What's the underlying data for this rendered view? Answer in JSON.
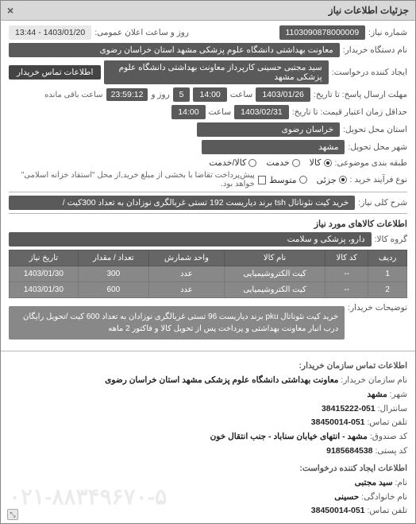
{
  "modal": {
    "title": "جزئیات اطلاعات نیاز",
    "close": "×"
  },
  "header": {
    "number_label": "شماره نیاز:",
    "number": "1103090878000009",
    "announce_label": "روز و ساعت اعلان عمومی:",
    "announce": "1403/01/20 - 13:44",
    "org_label": "نام دستگاه خریدار:",
    "org": "معاونت بهداشتی دانشگاه علوم پزشکی مشهد استان خراسان رضوی",
    "requester_label": "ایجاد کننده درخواست:",
    "requester": "سید مجتبی حسینی کارپرداز معاونت بهداشتی دانشگاه علوم پزشکی مشهد",
    "contact_btn": "اطلاعات تماس خریدار",
    "deadline_label": "مهلت ارسال پاسخ: تا تاریخ:",
    "deadline_date": "1403/01/26",
    "deadline_time_label": "ساعت",
    "deadline_time": "14:00",
    "days_label": "روز و",
    "days": "5",
    "timer": "23:59:12",
    "remaining": "ساعت باقی مانده",
    "validity_label": "حداقل زمان اعتبار قیمت: تا تاریخ:",
    "validity_date": "1403/02/31",
    "validity_time": "14:00",
    "province_label": "استان محل تحویل:",
    "province": "خراسان رضوی",
    "city_label": "شهر محل تحویل:",
    "city": "مشهد",
    "grouping_label": "طبقه بندی موضوعی:",
    "grouping_options": {
      "goods": "کالا",
      "service": "خدمت",
      "both": "کالا/خدمت"
    },
    "buytype_label": "نوع فرآیند خرید :",
    "buytype_options": {
      "partial": "جزئی",
      "medium": "متوسط"
    },
    "buytype_note": "پیش‌پرداخت تقاضا با بخشی از مبلغ خرید,از محل \"استفاد خزانه اسلامی\" خواهد بود.",
    "need_title_label": "شرح کلی نیاز:",
    "need_title": "خرید کیت نئوناتال tsh برند دیاریست 192 تستی غربالگری نوزادان به تعداد 300کیت /"
  },
  "goods": {
    "section_title": "اطلاعات کالاهای مورد نیاز",
    "group_label": "گروه کالا:",
    "group": "دارو، پزشکی و سلامت",
    "columns": {
      "row": "ردیف",
      "code": "کد کالا",
      "name": "نام کالا",
      "unit": "واحد شمارش",
      "qty": "تعداد / مقدار",
      "date": "تاریخ نیاز"
    },
    "rows": [
      {
        "row": "1",
        "code": "--",
        "name": "کیت الکتروشیمیایی",
        "unit": "عدد",
        "qty": "300",
        "date": "1403/01/30"
      },
      {
        "row": "2",
        "code": "--",
        "name": "کیت الکتروشیمیایی",
        "unit": "عدد",
        "qty": "600",
        "date": "1403/01/30"
      }
    ]
  },
  "desc": {
    "label": "توضیحات خریدار:",
    "text": "خرید کیت نئوناتال pku برند دیاریست 96 تستی غربالگری نوزادان به تعداد 600 کیت /تحویل رایگان درب انبار معاونت بهداشتی و پرداخت پس از تحویل کالا و فاکتور 2 ماهه"
  },
  "contact": {
    "section_title": "اطلاعات تماس سازمان خریدار:",
    "org_label": "نام سازمان خریدار:",
    "org": "معاونت بهداشتی دانشگاه علوم پزشکی مشهد استان خراسان رضوی",
    "city_label": "شهر:",
    "city": "مشهد",
    "central_label": "سانترال:",
    "central": "051-38415222",
    "fax_label": "تلفن تماس:",
    "fax": "051-38450014",
    "postal_label": "کد صندوق:",
    "postal": "مشهد - انتهای خیابان سناباد - جنب انتقال خون",
    "postcode_label": "کد پستی:",
    "postcode": "9185684538",
    "creator_section": "اطلاعات ایجاد کننده درخواست:",
    "name_label": "نام:",
    "name": "سید مجتبی",
    "family_label": "نام خانوادگی:",
    "family": "حسینی",
    "phone_label": "تلفن تماس:",
    "phone": "051-38450014",
    "watermark": "۰۲۱-۸۸۳۴۹۶۷۰-۵"
  },
  "styling": {
    "field_bg": "#5a5a5a",
    "field_fg": "#ffffff",
    "header_bg": "#d8d8d8",
    "table_header_bg": "#666666",
    "table_cell_bg": "#888888",
    "body_bg": "#d0d0d0",
    "label_color": "#555555",
    "font_size_base": 11
  }
}
